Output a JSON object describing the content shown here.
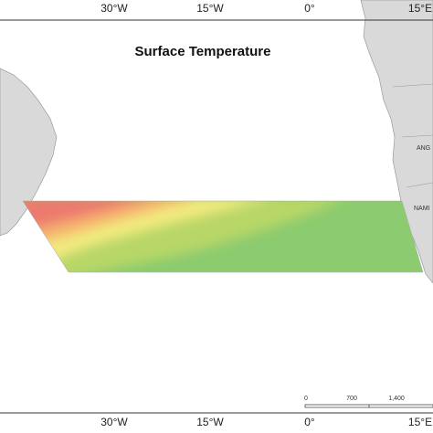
{
  "title": "Surface Temperature",
  "longitude_labels_top": [
    "30°W",
    "15°W",
    "0°",
    "15°E"
  ],
  "longitude_labels_bottom": [
    "30°W",
    "15°W",
    "0°",
    "15°E"
  ],
  "countries": [
    "ANG",
    "NAMI"
  ],
  "scale_bar": [
    "0",
    "700",
    "1,400"
  ]
}
